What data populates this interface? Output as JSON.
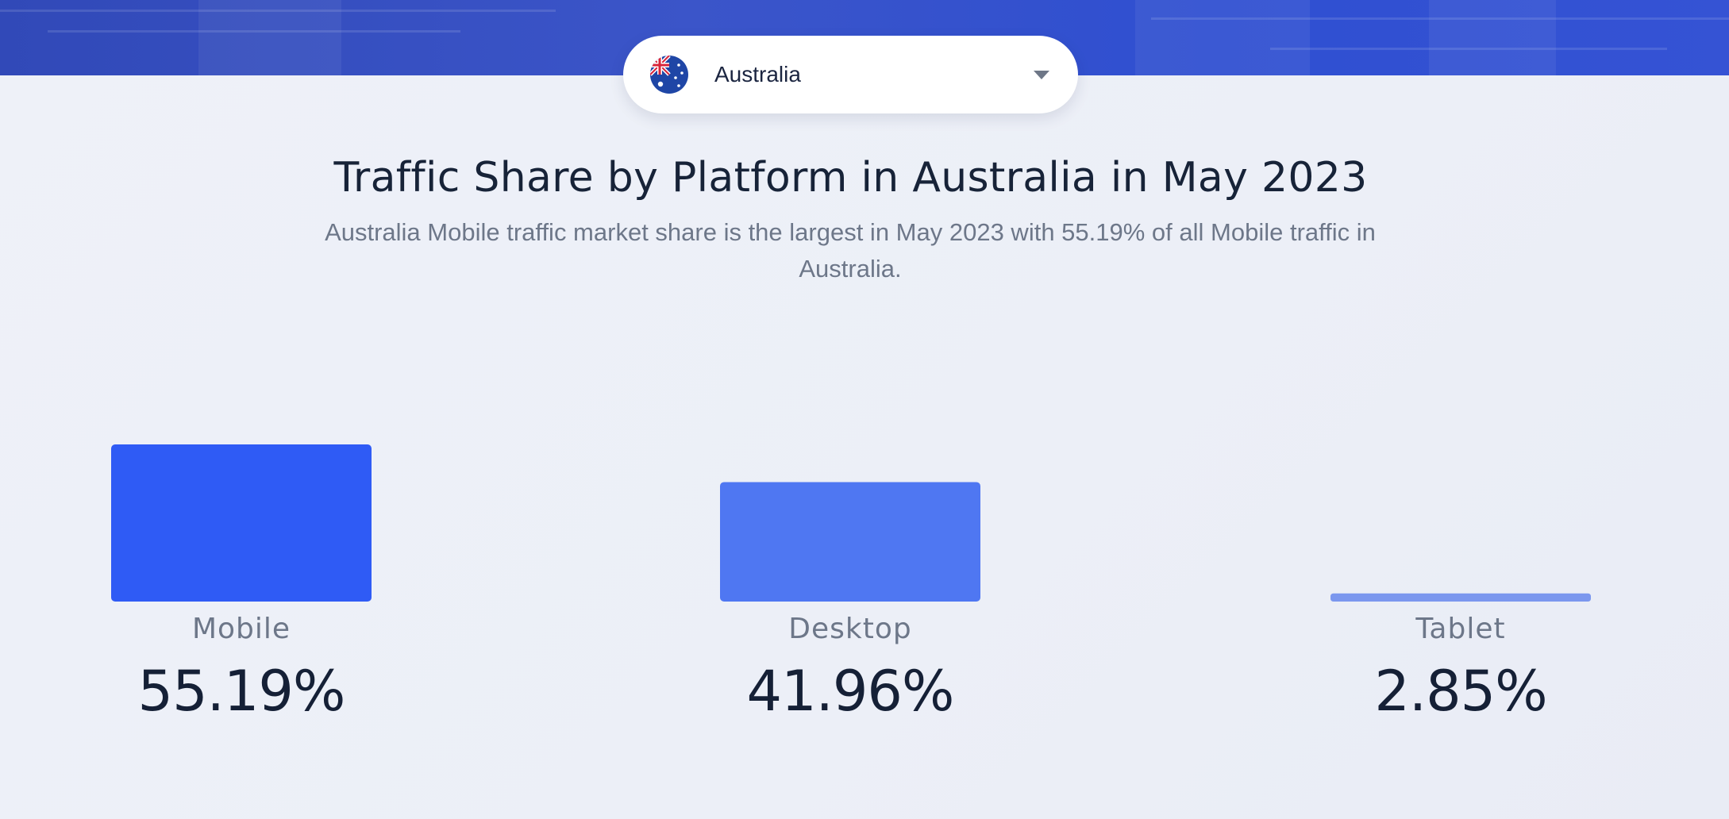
{
  "country_selector": {
    "selected": "Australia",
    "flag_icon": "australia-flag-icon",
    "chevron_icon": "chevron-down-icon"
  },
  "chart_data": {
    "type": "bar",
    "title": "Traffic Share by Platform in Australia in May 2023",
    "subtitle": "Australia Mobile traffic market share is the largest in May 2023 with 55.19% of all Mobile traffic in Australia.",
    "categories": [
      "Mobile",
      "Desktop",
      "Tablet"
    ],
    "values": [
      55.19,
      41.96,
      2.85
    ],
    "value_labels": [
      "55.19%",
      "41.96%",
      "2.85%"
    ],
    "colors": [
      "#2f5bf5",
      "#4f77f2",
      "#7b97ee"
    ],
    "grid": false,
    "legend": "none"
  }
}
